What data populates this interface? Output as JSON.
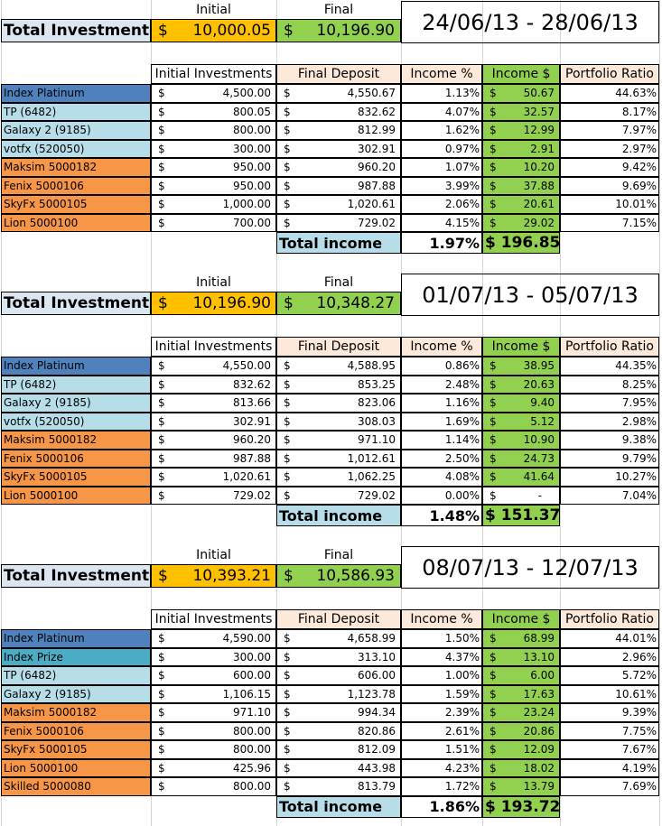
{
  "labels": {
    "initial": "Initial",
    "final": "Final",
    "total_investments": "Total Investments",
    "currency": "$",
    "total_income": "Total income",
    "columns": [
      "Initial Investments",
      "Final Deposit",
      "Income %",
      "Income $",
      "Portfolio Ratio"
    ]
  },
  "colors": {
    "yellow": "#ffc000",
    "green": "#92d050",
    "light_blue": "#b7dee8",
    "blue": "#4f81bd",
    "teal": "#4bacc6",
    "orange": "#f79646",
    "peach": "#fde9d9"
  },
  "blocks": [
    {
      "date_range": "24/06/13 - 28/06/13",
      "initial_total": "10,000.05",
      "final_total": "10,196.90",
      "rows": [
        {
          "name": "Index Platinum",
          "color": "blue",
          "initial": "4,500.00",
          "final": "4,550.67",
          "pct": "1.13%",
          "income": "50.67",
          "ratio": "44.63%"
        },
        {
          "name": "TP (6482)",
          "color": "lightblue",
          "initial": "800.05",
          "final": "832.62",
          "pct": "4.07%",
          "income": "32.57",
          "ratio": "8.17%"
        },
        {
          "name": "Galaxy 2 (9185)",
          "color": "lightblue",
          "initial": "800.00",
          "final": "812.99",
          "pct": "1.62%",
          "income": "12.99",
          "ratio": "7.97%"
        },
        {
          "name": "votfx (520050)",
          "color": "lightblue",
          "initial": "300.00",
          "final": "302.91",
          "pct": "0.97%",
          "income": "2.91",
          "ratio": "2.97%"
        },
        {
          "name": "Maksim 5000182",
          "color": "orange",
          "initial": "950.00",
          "final": "960.20",
          "pct": "1.07%",
          "income": "10.20",
          "ratio": "9.42%"
        },
        {
          "name": "Fenix 5000106",
          "color": "orange",
          "initial": "950.00",
          "final": "987.88",
          "pct": "3.99%",
          "income": "37.88",
          "ratio": "9.69%"
        },
        {
          "name": "SkyFx 5000105",
          "color": "orange",
          "initial": "1,000.00",
          "final": "1,020.61",
          "pct": "2.06%",
          "income": "20.61",
          "ratio": "10.01%"
        },
        {
          "name": "Lion 5000100",
          "color": "orange",
          "initial": "700.00",
          "final": "729.02",
          "pct": "4.15%",
          "income": "29.02",
          "ratio": "7.15%"
        }
      ],
      "total_pct": "1.97%",
      "total_income": "$ 196.85"
    },
    {
      "date_range": "01/07/13 - 05/07/13",
      "initial_total": "10,196.90",
      "final_total": "10,348.27",
      "rows": [
        {
          "name": "Index Platinum",
          "color": "blue",
          "initial": "4,550.00",
          "final": "4,588.95",
          "pct": "0.86%",
          "income": "38.95",
          "ratio": "44.35%"
        },
        {
          "name": "TP (6482)",
          "color": "lightblue",
          "initial": "832.62",
          "final": "853.25",
          "pct": "2.48%",
          "income": "20.63",
          "ratio": "8.25%"
        },
        {
          "name": "Galaxy 2 (9185)",
          "color": "lightblue",
          "initial": "813.66",
          "final": "823.06",
          "pct": "1.16%",
          "income": "9.40",
          "ratio": "7.95%"
        },
        {
          "name": "votfx (520050)",
          "color": "lightblue",
          "initial": "302.91",
          "final": "308.03",
          "pct": "1.69%",
          "income": "5.12",
          "ratio": "2.98%"
        },
        {
          "name": "Maksim 5000182",
          "color": "orange",
          "initial": "960.20",
          "final": "971.10",
          "pct": "1.14%",
          "income": "10.90",
          "ratio": "9.38%"
        },
        {
          "name": "Fenix 5000106",
          "color": "orange",
          "initial": "987.88",
          "final": "1,012.61",
          "pct": "2.50%",
          "income": "24.73",
          "ratio": "9.79%"
        },
        {
          "name": "SkyFx 5000105",
          "color": "orange",
          "initial": "1,020.61",
          "final": "1,062.25",
          "pct": "4.08%",
          "income": "41.64",
          "ratio": "10.27%"
        },
        {
          "name": "Lion 5000100",
          "color": "orange",
          "initial": "729.02",
          "final": "729.02",
          "pct": "0.00%",
          "income": "-",
          "ratio": "7.04%",
          "income_plain": true
        }
      ],
      "total_pct": "1.48%",
      "total_income": "$ 151.37"
    },
    {
      "date_range": "08/07/13 - 12/07/13",
      "initial_total": "10,393.21",
      "final_total": "10,586.93",
      "rows": [
        {
          "name": "Index Platinum",
          "color": "blue",
          "initial": "4,590.00",
          "final": "4,658.99",
          "pct": "1.50%",
          "income": "68.99",
          "ratio": "44.01%"
        },
        {
          "name": "Index Prize",
          "color": "teal",
          "initial": "300.00",
          "final": "313.10",
          "pct": "4.37%",
          "income": "13.10",
          "ratio": "2.96%"
        },
        {
          "name": "TP (6482)",
          "color": "lightblue",
          "initial": "600.00",
          "final": "606.00",
          "pct": "1.00%",
          "income": "6.00",
          "ratio": "5.72%"
        },
        {
          "name": "Galaxy 2 (9185)",
          "color": "lightblue",
          "initial": "1,106.15",
          "final": "1,123.78",
          "pct": "1.59%",
          "income": "17.63",
          "ratio": "10.61%"
        },
        {
          "name": "Maksim 5000182",
          "color": "orange",
          "initial": "971.10",
          "final": "994.34",
          "pct": "2.39%",
          "income": "23.24",
          "ratio": "9.39%"
        },
        {
          "name": "Fenix 5000106",
          "color": "orange",
          "initial": "800.00",
          "final": "820.86",
          "pct": "2.61%",
          "income": "20.86",
          "ratio": "7.75%"
        },
        {
          "name": "SkyFx 5000105",
          "color": "orange",
          "initial": "800.00",
          "final": "812.09",
          "pct": "1.51%",
          "income": "12.09",
          "ratio": "7.67%"
        },
        {
          "name": "Lion 5000100",
          "color": "orange",
          "initial": "425.96",
          "final": "443.98",
          "pct": "4.23%",
          "income": "18.02",
          "ratio": "4.19%"
        },
        {
          "name": "Skilled 5000080",
          "color": "orange",
          "initial": "800.00",
          "final": "813.79",
          "pct": "1.72%",
          "income": "13.79",
          "ratio": "7.69%"
        }
      ],
      "total_pct": "1.86%",
      "total_income": "$ 193.72"
    }
  ]
}
